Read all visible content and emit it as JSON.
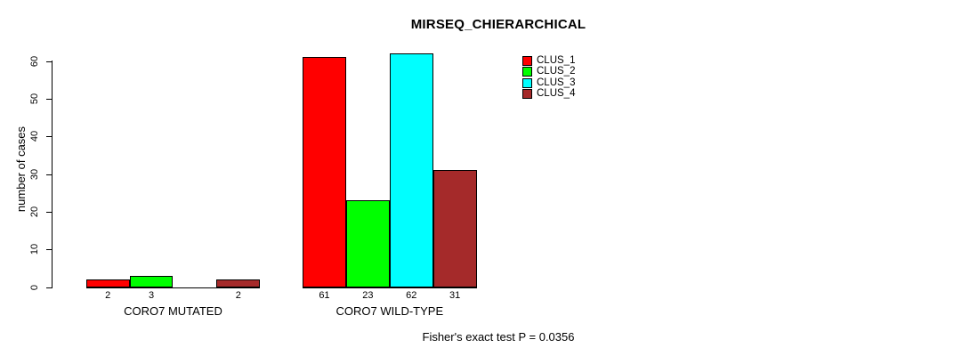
{
  "chart": {
    "title": "MIRSEQ_CHIERARCHICAL",
    "ylabel": "number of cases",
    "footer": "Fisher's exact test P = 0.0356"
  },
  "chart_data": {
    "type": "bar",
    "title": "MIRSEQ_CHIERARCHICAL",
    "xlabel": "",
    "ylabel": "number of cases",
    "categories": [
      "CORO7 MUTATED",
      "CORO7 WILD-TYPE"
    ],
    "series": [
      {
        "name": "CLUS_1",
        "color": "#FF0000",
        "values": [
          2,
          61
        ]
      },
      {
        "name": "CLUS_2",
        "color": "#00FF00",
        "values": [
          3,
          23
        ]
      },
      {
        "name": "CLUS_3",
        "color": "#00FFFF",
        "values": [
          0,
          62
        ]
      },
      {
        "name": "CLUS_4",
        "color": "#A52A2A",
        "values": [
          2,
          31
        ]
      }
    ],
    "bar_labels": [
      [
        "2",
        "3",
        null,
        "2"
      ],
      [
        "61",
        "23",
        "62",
        "31"
      ]
    ],
    "yticks": [
      0,
      10,
      20,
      30,
      40,
      50,
      60
    ],
    "ylim": [
      0,
      62
    ],
    "grid": false,
    "legend_position": "top-right",
    "annotation": "Fisher's exact test P = 0.0356"
  }
}
